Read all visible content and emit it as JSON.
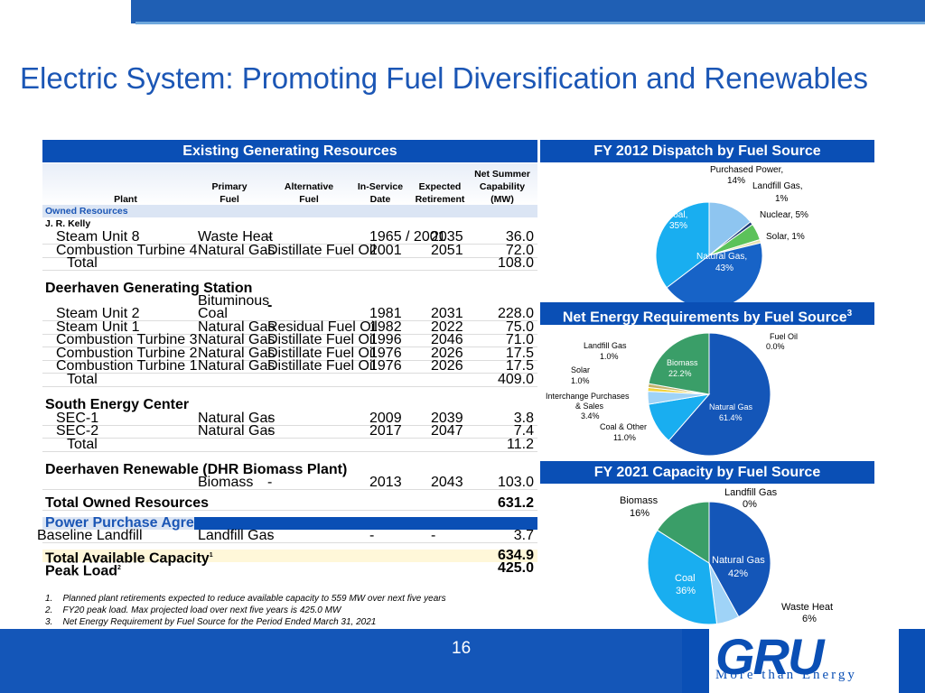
{
  "title": "Electric System: Promoting Fuel Diversification and Renewables",
  "page_number": "16",
  "logo": {
    "text": "GRU",
    "tagline": "More than Energy"
  },
  "table": {
    "heading": "Existing Generating Resources",
    "columns": {
      "plant": "Plant",
      "primary": [
        "Primary",
        "Fuel"
      ],
      "alternative": [
        "Alternative",
        "Fuel"
      ],
      "in_service": [
        "In-Service",
        "Date"
      ],
      "retirement": [
        "Expected",
        "Retirement"
      ],
      "capability": [
        "Net Summer",
        "Capability",
        "(MW)"
      ]
    },
    "owned_label": "Owned Resources",
    "kelly": {
      "name": "J. R. Kelly",
      "rows": [
        {
          "plant": "Steam Unit 8",
          "primary": "Waste Heat",
          "alt": "-",
          "service": "1965 / 2001",
          "retire": "2035",
          "mw": "36.0"
        },
        {
          "plant": "Combustion Turbine 4",
          "primary": "Natural Gas",
          "alt": "Distillate Fuel Oil",
          "service": "2001",
          "retire": "2051",
          "mw": "72.0"
        }
      ],
      "total_label": "Total",
      "total": "108.0"
    },
    "deerhaven": {
      "name": "Deerhaven Generating Station",
      "rows": [
        {
          "plant": "Steam Unit 2",
          "primary": "Bituminous Coal",
          "alt": "-",
          "service": "1981",
          "retire": "2031",
          "mw": "228.0"
        },
        {
          "plant": "Steam Unit 1",
          "primary": "Natural Gas",
          "alt": "Residual Fuel Oil",
          "service": "1982",
          "retire": "2022",
          "mw": "75.0"
        },
        {
          "plant": "Combustion Turbine 3",
          "primary": "Natural Gas",
          "alt": "Distillate Fuel Oil",
          "service": "1996",
          "retire": "2046",
          "mw": "71.0"
        },
        {
          "plant": "Combustion Turbine 2",
          "primary": "Natural Gas",
          "alt": "Distillate Fuel Oil",
          "service": "1976",
          "retire": "2026",
          "mw": "17.5"
        },
        {
          "plant": "Combustion Turbine 1",
          "primary": "Natural Gas",
          "alt": "Distillate Fuel Oil",
          "service": "1976",
          "retire": "2026",
          "mw": "17.5"
        }
      ],
      "total_label": "Total",
      "total": "409.0"
    },
    "south": {
      "name": "South Energy Center",
      "rows": [
        {
          "plant": "SEC-1",
          "primary": "Natural Gas",
          "alt": "-",
          "service": "2009",
          "retire": "2039",
          "mw": "3.8"
        },
        {
          "plant": "SEC-2",
          "primary": "Natural Gas",
          "alt": "-",
          "service": "2017",
          "retire": "2047",
          "mw": "7.4"
        }
      ],
      "total_label": "Total",
      "total": "11.2"
    },
    "dhr": {
      "name": "Deerhaven Renewable (DHR Biomass Plant)",
      "primary": "Biomass",
      "alt": "-",
      "service": "2013",
      "retire": "2043",
      "mw": "103.0"
    },
    "total_owned_label": "Total Owned Resources",
    "total_owned": "631.2",
    "ppa_label": "Power Purchase Agreements",
    "baseline": {
      "plant": "Baseline Landfill",
      "primary": "Landfill Gas",
      "alt": "-",
      "service": "-",
      "retire": "-",
      "mw": "3.7"
    },
    "total_available_label": "Total Available Capacity",
    "total_available_sup": "1",
    "total_available": "634.9",
    "peak_label": "Peak Load",
    "peak_sup": "2",
    "peak": "425.0",
    "notes": [
      {
        "num": "1.",
        "text": "Planned plant retirements expected to reduce available capacity to 559 MW over next five years"
      },
      {
        "num": "2.",
        "text": "FY20 peak load. Max projected load over next five years is 425.0 MW"
      },
      {
        "num": "3.",
        "text": "Net Energy Requirement by Fuel Source for the Period Ended March 31, 2021"
      }
    ]
  },
  "chart_data": [
    {
      "type": "pie",
      "title": "FY 2012 Dispatch by Fuel Source",
      "categories": [
        "Purchased Power",
        "Landfill Gas",
        "Nuclear",
        "Solar",
        "Natural Gas",
        "Coal"
      ],
      "values": [
        14,
        1,
        5,
        1,
        43,
        35
      ],
      "labels": [
        "Purchased Power,",
        "14%",
        "Landfill Gas,",
        "1%",
        "Nuclear, 5%",
        "Solar, 1%",
        "Natural Gas,",
        "43%",
        "Coal,",
        "35%"
      ],
      "colors": [
        "#8ec5f0",
        "#1f3e7a",
        "#5cc25a",
        "#e8e2b0",
        "#1763c7",
        "#19aef0"
      ]
    },
    {
      "type": "pie",
      "title": "Net Energy Requirements by Fuel Source",
      "title_sup": "3",
      "categories": [
        "Fuel Oil",
        "Natural Gas",
        "Coal & Other",
        "Interchange Purchases & Sales",
        "Solar",
        "Landfill Gas",
        "Biomass"
      ],
      "values": [
        0.0,
        61.4,
        11.0,
        3.4,
        1.0,
        1.0,
        22.2
      ],
      "labels": [
        "Fuel Oil",
        "0.0%",
        "Landfill Gas",
        "1.0%",
        "Biomass",
        "22.2%",
        "Solar",
        "1.0%",
        "Interchange Purchases",
        "& Sales",
        "3.4%",
        "Natural Gas",
        "61.4%",
        "Coal & Other",
        "11.0%"
      ],
      "colors": [
        "#6d6d6d",
        "#1456b8",
        "#19aef0",
        "#9fd3f7",
        "#f2d23a",
        "#c4b46a",
        "#3a9e68"
      ]
    },
    {
      "type": "pie",
      "title": "FY 2021 Capacity by Fuel Source",
      "categories": [
        "Landfill Gas",
        "Natural Gas",
        "Waste Heat",
        "Coal",
        "Biomass"
      ],
      "values": [
        0,
        42,
        6,
        36,
        16
      ],
      "labels": [
        "Landfill Gas",
        "0%",
        "Natural Gas",
        "42%",
        "Waste Heat",
        "6%",
        "Coal",
        "36%",
        "Biomass",
        "16%"
      ],
      "colors": [
        "#dddddd",
        "#1456b8",
        "#9fd3f7",
        "#19aef0",
        "#3a9e68"
      ]
    }
  ]
}
